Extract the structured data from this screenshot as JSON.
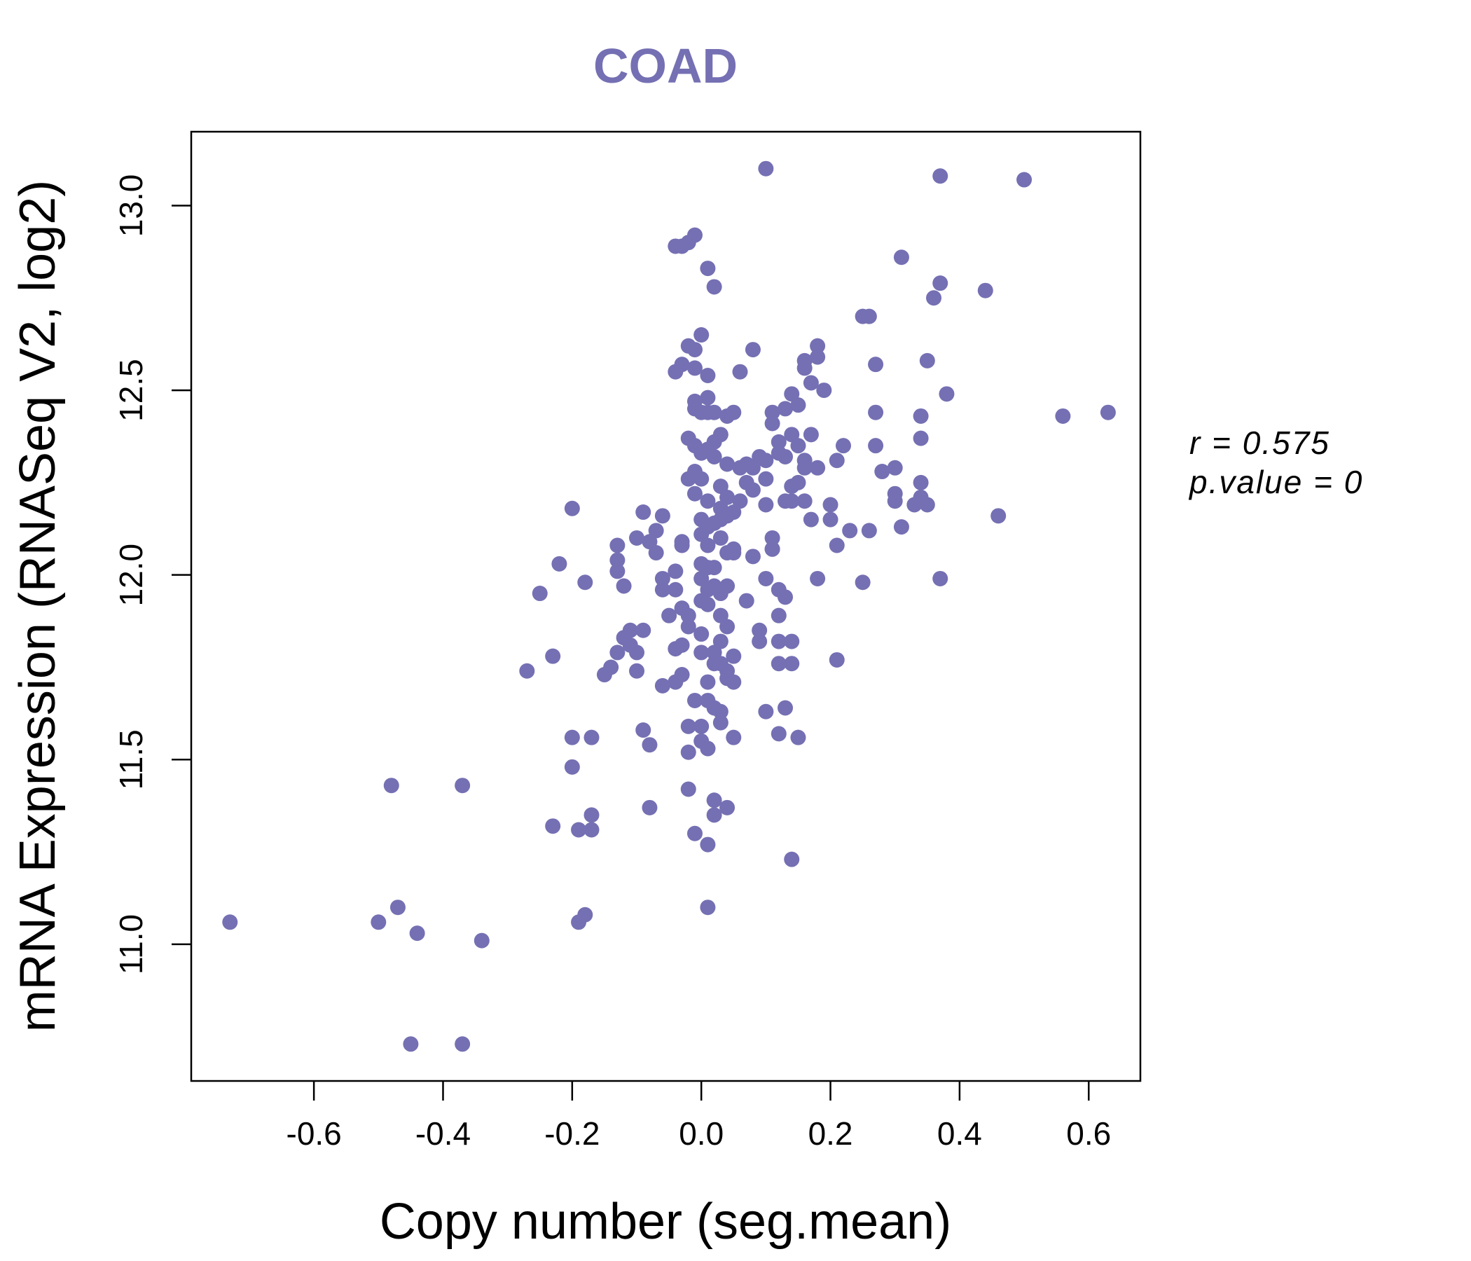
{
  "chart_data": {
    "type": "scatter",
    "title": "COAD",
    "xlabel": "Copy number (seg.mean)",
    "ylabel": "mRNA Expression (RNASeq V2, log2)",
    "xlim": [
      -0.79,
      0.68
    ],
    "ylim": [
      10.63,
      13.2
    ],
    "xticks": [
      -0.6,
      -0.4,
      -0.2,
      0.0,
      0.2,
      0.4,
      0.6
    ],
    "xtick_labels": [
      "-0.6",
      "-0.4",
      "-0.2",
      "0.0",
      "0.2",
      "0.4",
      "0.6"
    ],
    "yticks": [
      11.0,
      11.5,
      12.0,
      12.5,
      13.0
    ],
    "ytick_labels": [
      "11.0",
      "11.5",
      "12.0",
      "12.5",
      "13.0"
    ],
    "color": "#7570b3",
    "annotation_r": "r = 0.575",
    "annotation_p": "p.value = 0",
    "points": [
      [
        -0.73,
        11.06
      ],
      [
        -0.5,
        11.06
      ],
      [
        -0.47,
        11.1
      ],
      [
        -0.44,
        11.03
      ],
      [
        -0.34,
        11.01
      ],
      [
        -0.45,
        10.73
      ],
      [
        -0.37,
        10.73
      ],
      [
        -0.48,
        11.43
      ],
      [
        -0.37,
        11.43
      ],
      [
        -0.27,
        11.74
      ],
      [
        -0.23,
        11.78
      ],
      [
        -0.25,
        11.95
      ],
      [
        -0.22,
        12.03
      ],
      [
        -0.2,
        12.18
      ],
      [
        -0.18,
        11.98
      ],
      [
        -0.2,
        11.56
      ],
      [
        -0.2,
        11.48
      ],
      [
        -0.17,
        11.56
      ],
      [
        -0.23,
        11.32
      ],
      [
        -0.19,
        11.31
      ],
      [
        -0.17,
        11.31
      ],
      [
        -0.17,
        11.35
      ],
      [
        -0.19,
        11.06
      ],
      [
        -0.18,
        11.08
      ],
      [
        -0.15,
        11.73
      ],
      [
        -0.14,
        11.75
      ],
      [
        -0.13,
        11.79
      ],
      [
        -0.13,
        12.04
      ],
      [
        -0.13,
        12.01
      ],
      [
        -0.12,
        11.97
      ],
      [
        -0.13,
        12.08
      ],
      [
        -0.12,
        11.83
      ],
      [
        -0.11,
        11.85
      ],
      [
        -0.11,
        11.81
      ],
      [
        -0.1,
        11.79
      ],
      [
        -0.1,
        11.74
      ],
      [
        -0.09,
        11.85
      ],
      [
        -0.09,
        11.58
      ],
      [
        -0.08,
        11.54
      ],
      [
        -0.08,
        11.37
      ],
      [
        -0.09,
        12.17
      ],
      [
        -0.07,
        12.12
      ],
      [
        -0.08,
        12.09
      ],
      [
        -0.07,
        12.06
      ],
      [
        -0.1,
        12.1
      ],
      [
        -0.06,
        12.16
      ],
      [
        -0.06,
        11.99
      ],
      [
        -0.06,
        11.96
      ],
      [
        -0.06,
        11.7
      ],
      [
        -0.05,
        11.89
      ],
      [
        -0.04,
        12.01
      ],
      [
        -0.04,
        11.96
      ],
      [
        -0.04,
        11.8
      ],
      [
        -0.03,
        11.91
      ],
      [
        -0.03,
        11.81
      ],
      [
        -0.03,
        11.73
      ],
      [
        -0.04,
        11.71
      ],
      [
        -0.03,
        12.08
      ],
      [
        -0.03,
        12.09
      ],
      [
        -0.02,
        11.89
      ],
      [
        -0.02,
        11.86
      ],
      [
        -0.02,
        11.59
      ],
      [
        -0.02,
        11.52
      ],
      [
        -0.02,
        11.42
      ],
      [
        -0.01,
        11.3
      ],
      [
        -0.04,
        12.89
      ],
      [
        -0.03,
        12.89
      ],
      [
        -0.02,
        12.9
      ],
      [
        -0.01,
        12.92
      ],
      [
        -0.04,
        12.55
      ],
      [
        -0.03,
        12.57
      ],
      [
        -0.02,
        12.62
      ],
      [
        -0.01,
        12.56
      ],
      [
        0.0,
        12.65
      ],
      [
        -0.01,
        12.61
      ],
      [
        -0.02,
        12.37
      ],
      [
        -0.01,
        12.45
      ],
      [
        -0.01,
        12.47
      ],
      [
        -0.01,
        12.35
      ],
      [
        -0.01,
        12.28
      ],
      [
        -0.01,
        12.22
      ],
      [
        -0.02,
        12.26
      ],
      [
        0.0,
        12.44
      ],
      [
        0.0,
        12.33
      ],
      [
        0.0,
        12.26
      ],
      [
        0.0,
        12.15
      ],
      [
        0.0,
        12.11
      ],
      [
        0.0,
        12.03
      ],
      [
        0.0,
        11.99
      ],
      [
        0.0,
        11.93
      ],
      [
        0.0,
        11.84
      ],
      [
        0.0,
        11.79
      ],
      [
        -0.01,
        11.66
      ],
      [
        0.0,
        11.59
      ],
      [
        0.0,
        11.55
      ],
      [
        0.01,
        12.54
      ],
      [
        0.01,
        12.48
      ],
      [
        0.01,
        12.44
      ],
      [
        0.01,
        12.34
      ],
      [
        0.01,
        12.2
      ],
      [
        0.01,
        12.13
      ],
      [
        0.01,
        12.08
      ],
      [
        0.01,
        12.02
      ],
      [
        0.01,
        11.96
      ],
      [
        0.01,
        11.92
      ],
      [
        0.01,
        11.71
      ],
      [
        0.01,
        11.66
      ],
      [
        0.01,
        11.53
      ],
      [
        0.01,
        11.53
      ],
      [
        0.01,
        11.27
      ],
      [
        0.01,
        11.1
      ],
      [
        0.01,
        12.83
      ],
      [
        0.02,
        12.78
      ],
      [
        0.02,
        12.44
      ],
      [
        0.02,
        12.36
      ],
      [
        0.02,
        12.32
      ],
      [
        0.02,
        12.14
      ],
      [
        0.02,
        12.02
      ],
      [
        0.02,
        11.97
      ],
      [
        0.02,
        11.79
      ],
      [
        0.02,
        11.76
      ],
      [
        0.02,
        11.64
      ],
      [
        0.02,
        11.39
      ],
      [
        0.02,
        11.35
      ],
      [
        0.03,
        12.38
      ],
      [
        0.03,
        12.24
      ],
      [
        0.03,
        12.18
      ],
      [
        0.03,
        12.15
      ],
      [
        0.03,
        11.95
      ],
      [
        0.03,
        11.89
      ],
      [
        0.03,
        11.82
      ],
      [
        0.03,
        11.76
      ],
      [
        0.03,
        11.63
      ],
      [
        0.03,
        11.6
      ],
      [
        0.03,
        12.1
      ],
      [
        0.04,
        12.43
      ],
      [
        0.04,
        12.3
      ],
      [
        0.04,
        12.21
      ],
      [
        0.04,
        12.16
      ],
      [
        0.04,
        12.06
      ],
      [
        0.04,
        11.97
      ],
      [
        0.04,
        11.86
      ],
      [
        0.04,
        11.74
      ],
      [
        0.04,
        11.72
      ],
      [
        0.04,
        11.37
      ],
      [
        0.05,
        12.44
      ],
      [
        0.05,
        12.17
      ],
      [
        0.05,
        12.07
      ],
      [
        0.05,
        12.06
      ],
      [
        0.05,
        11.78
      ],
      [
        0.05,
        11.71
      ],
      [
        0.05,
        11.56
      ],
      [
        0.06,
        12.55
      ],
      [
        0.06,
        12.29
      ],
      [
        0.06,
        12.2
      ],
      [
        0.07,
        12.3
      ],
      [
        0.07,
        12.25
      ],
      [
        0.07,
        11.93
      ],
      [
        0.08,
        12.61
      ],
      [
        0.08,
        12.29
      ],
      [
        0.08,
        12.23
      ],
      [
        0.08,
        12.05
      ],
      [
        0.09,
        11.85
      ],
      [
        0.09,
        11.82
      ],
      [
        0.09,
        12.32
      ],
      [
        0.1,
        12.31
      ],
      [
        0.1,
        12.19
      ],
      [
        0.1,
        12.26
      ],
      [
        0.1,
        11.99
      ],
      [
        0.1,
        11.63
      ],
      [
        0.1,
        13.1
      ],
      [
        0.11,
        12.44
      ],
      [
        0.11,
        12.41
      ],
      [
        0.11,
        12.1
      ],
      [
        0.11,
        12.07
      ],
      [
        0.11,
        12.07
      ],
      [
        0.12,
        12.36
      ],
      [
        0.12,
        12.33
      ],
      [
        0.12,
        11.96
      ],
      [
        0.12,
        11.89
      ],
      [
        0.12,
        11.82
      ],
      [
        0.12,
        11.76
      ],
      [
        0.12,
        11.57
      ],
      [
        0.13,
        12.32
      ],
      [
        0.13,
        12.2
      ],
      [
        0.13,
        11.94
      ],
      [
        0.13,
        11.64
      ],
      [
        0.13,
        12.45
      ],
      [
        0.14,
        12.49
      ],
      [
        0.14,
        12.38
      ],
      [
        0.14,
        12.24
      ],
      [
        0.14,
        12.2
      ],
      [
        0.14,
        11.82
      ],
      [
        0.14,
        11.76
      ],
      [
        0.14,
        11.23
      ],
      [
        0.15,
        12.46
      ],
      [
        0.15,
        12.35
      ],
      [
        0.15,
        12.25
      ],
      [
        0.15,
        11.56
      ],
      [
        0.16,
        12.58
      ],
      [
        0.16,
        12.56
      ],
      [
        0.16,
        12.31
      ],
      [
        0.16,
        12.29
      ],
      [
        0.16,
        12.2
      ],
      [
        0.17,
        12.38
      ],
      [
        0.17,
        12.15
      ],
      [
        0.17,
        12.52
      ],
      [
        0.18,
        12.62
      ],
      [
        0.18,
        12.59
      ],
      [
        0.18,
        12.29
      ],
      [
        0.18,
        11.99
      ],
      [
        0.19,
        12.5
      ],
      [
        0.2,
        12.19
      ],
      [
        0.2,
        12.15
      ],
      [
        0.21,
        12.31
      ],
      [
        0.21,
        12.08
      ],
      [
        0.21,
        11.77
      ],
      [
        0.22,
        12.35
      ],
      [
        0.23,
        12.12
      ],
      [
        0.25,
        11.98
      ],
      [
        0.25,
        12.7
      ],
      [
        0.26,
        12.7
      ],
      [
        0.26,
        12.12
      ],
      [
        0.27,
        12.57
      ],
      [
        0.27,
        12.44
      ],
      [
        0.27,
        12.35
      ],
      [
        0.28,
        12.28
      ],
      [
        0.3,
        12.29
      ],
      [
        0.3,
        12.22
      ],
      [
        0.3,
        12.2
      ],
      [
        0.31,
        12.13
      ],
      [
        0.31,
        12.86
      ],
      [
        0.33,
        12.19
      ],
      [
        0.34,
        12.43
      ],
      [
        0.34,
        12.21
      ],
      [
        0.34,
        12.25
      ],
      [
        0.34,
        12.37
      ],
      [
        0.35,
        12.58
      ],
      [
        0.35,
        12.19
      ],
      [
        0.36,
        12.75
      ],
      [
        0.37,
        11.99
      ],
      [
        0.37,
        13.08
      ],
      [
        0.37,
        12.79
      ],
      [
        0.38,
        12.49
      ],
      [
        0.44,
        12.77
      ],
      [
        0.46,
        12.16
      ],
      [
        0.5,
        13.07
      ],
      [
        0.56,
        12.43
      ],
      [
        0.63,
        12.44
      ]
    ]
  }
}
